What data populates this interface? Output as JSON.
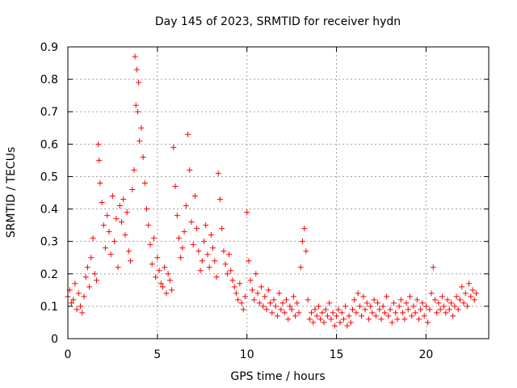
{
  "chart_data": {
    "type": "scatter",
    "title": "Day 145 of 2023, SRMTID for receiver hydn",
    "xlabel": "GPS time / hours",
    "ylabel": "SRMTID / TECUs",
    "xlim": [
      0,
      23.5
    ],
    "ylim": [
      0,
      0.9
    ],
    "xticks": [
      0,
      5,
      10,
      15,
      20
    ],
    "yticks": [
      0,
      0.1,
      0.2,
      0.3,
      0.4,
      0.5,
      0.6,
      0.7,
      0.8,
      0.9
    ],
    "xtick_labels": [
      "0",
      "5",
      "10",
      "15",
      "20"
    ],
    "ytick_labels": [
      "0",
      "0.1",
      "0.2",
      "0.3",
      "0.4",
      "0.5",
      "0.6",
      "0.7",
      "0.8",
      "0.9"
    ],
    "grid": true,
    "marker": "plus",
    "color": "#ff0000",
    "series": [
      {
        "name": "SRMTID",
        "points": [
          [
            0.0,
            0.13
          ],
          [
            0.1,
            0.15
          ],
          [
            0.2,
            0.11
          ],
          [
            0.3,
            0.12
          ],
          [
            0.4,
            0.17
          ],
          [
            0.5,
            0.09
          ],
          [
            0.6,
            0.14
          ],
          [
            0.7,
            0.1
          ],
          [
            0.8,
            0.08
          ],
          [
            0.9,
            0.13
          ],
          [
            1.0,
            0.19
          ],
          [
            1.1,
            0.22
          ],
          [
            1.2,
            0.16
          ],
          [
            1.3,
            0.25
          ],
          [
            1.4,
            0.31
          ],
          [
            1.5,
            0.2
          ],
          [
            1.6,
            0.18
          ],
          [
            1.7,
            0.6
          ],
          [
            1.75,
            0.55
          ],
          [
            1.8,
            0.48
          ],
          [
            1.9,
            0.42
          ],
          [
            2.0,
            0.35
          ],
          [
            2.1,
            0.28
          ],
          [
            2.2,
            0.38
          ],
          [
            2.3,
            0.33
          ],
          [
            2.4,
            0.26
          ],
          [
            2.5,
            0.44
          ],
          [
            2.6,
            0.3
          ],
          [
            2.7,
            0.37
          ],
          [
            2.8,
            0.22
          ],
          [
            2.9,
            0.41
          ],
          [
            3.0,
            0.36
          ],
          [
            3.1,
            0.43
          ],
          [
            3.2,
            0.32
          ],
          [
            3.3,
            0.39
          ],
          [
            3.4,
            0.27
          ],
          [
            3.5,
            0.24
          ],
          [
            3.6,
            0.46
          ],
          [
            3.7,
            0.52
          ],
          [
            3.75,
            0.87
          ],
          [
            3.8,
            0.72
          ],
          [
            3.85,
            0.83
          ],
          [
            3.9,
            0.7
          ],
          [
            3.95,
            0.79
          ],
          [
            4.0,
            0.61
          ],
          [
            4.1,
            0.65
          ],
          [
            4.2,
            0.56
          ],
          [
            4.3,
            0.48
          ],
          [
            4.4,
            0.4
          ],
          [
            4.5,
            0.35
          ],
          [
            4.6,
            0.29
          ],
          [
            4.7,
            0.23
          ],
          [
            4.8,
            0.31
          ],
          [
            4.9,
            0.19
          ],
          [
            5.0,
            0.25
          ],
          [
            5.1,
            0.21
          ],
          [
            5.2,
            0.17
          ],
          [
            5.3,
            0.16
          ],
          [
            5.4,
            0.22
          ],
          [
            5.5,
            0.14
          ],
          [
            5.6,
            0.2
          ],
          [
            5.7,
            0.18
          ],
          [
            5.8,
            0.15
          ],
          [
            5.9,
            0.59
          ],
          [
            6.0,
            0.47
          ],
          [
            6.1,
            0.38
          ],
          [
            6.2,
            0.31
          ],
          [
            6.3,
            0.25
          ],
          [
            6.4,
            0.28
          ],
          [
            6.5,
            0.33
          ],
          [
            6.6,
            0.41
          ],
          [
            6.7,
            0.63
          ],
          [
            6.8,
            0.52
          ],
          [
            6.9,
            0.36
          ],
          [
            7.0,
            0.29
          ],
          [
            7.1,
            0.44
          ],
          [
            7.2,
            0.34
          ],
          [
            7.3,
            0.27
          ],
          [
            7.4,
            0.21
          ],
          [
            7.5,
            0.24
          ],
          [
            7.6,
            0.3
          ],
          [
            7.7,
            0.35
          ],
          [
            7.8,
            0.26
          ],
          [
            7.9,
            0.22
          ],
          [
            8.0,
            0.32
          ],
          [
            8.1,
            0.28
          ],
          [
            8.2,
            0.24
          ],
          [
            8.3,
            0.19
          ],
          [
            8.4,
            0.51
          ],
          [
            8.5,
            0.43
          ],
          [
            8.6,
            0.34
          ],
          [
            8.7,
            0.27
          ],
          [
            8.8,
            0.23
          ],
          [
            8.9,
            0.2
          ],
          [
            9.0,
            0.26
          ],
          [
            9.1,
            0.21
          ],
          [
            9.2,
            0.18
          ],
          [
            9.3,
            0.16
          ],
          [
            9.4,
            0.14
          ],
          [
            9.5,
            0.12
          ],
          [
            9.6,
            0.17
          ],
          [
            9.7,
            0.11
          ],
          [
            9.8,
            0.09
          ],
          [
            9.9,
            0.13
          ],
          [
            10.0,
            0.39
          ],
          [
            10.1,
            0.24
          ],
          [
            10.2,
            0.18
          ],
          [
            10.3,
            0.15
          ],
          [
            10.4,
            0.12
          ],
          [
            10.5,
            0.2
          ],
          [
            10.6,
            0.14
          ],
          [
            10.7,
            0.11
          ],
          [
            10.8,
            0.16
          ],
          [
            10.9,
            0.1
          ],
          [
            11.0,
            0.13
          ],
          [
            11.1,
            0.09
          ],
          [
            11.2,
            0.15
          ],
          [
            11.3,
            0.11
          ],
          [
            11.4,
            0.08
          ],
          [
            11.5,
            0.12
          ],
          [
            11.6,
            0.1
          ],
          [
            11.7,
            0.07
          ],
          [
            11.8,
            0.14
          ],
          [
            11.9,
            0.09
          ],
          [
            12.0,
            0.11
          ],
          [
            12.1,
            0.08
          ],
          [
            12.2,
            0.12
          ],
          [
            12.3,
            0.06
          ],
          [
            12.4,
            0.1
          ],
          [
            12.5,
            0.09
          ],
          [
            12.6,
            0.13
          ],
          [
            12.7,
            0.07
          ],
          [
            12.8,
            0.11
          ],
          [
            12.9,
            0.08
          ],
          [
            13.0,
            0.22
          ],
          [
            13.1,
            0.3
          ],
          [
            13.2,
            0.34
          ],
          [
            13.3,
            0.27
          ],
          [
            13.4,
            0.12
          ],
          [
            13.5,
            0.06
          ],
          [
            13.6,
            0.08
          ],
          [
            13.7,
            0.05
          ],
          [
            13.8,
            0.09
          ],
          [
            13.9,
            0.07
          ],
          [
            14.0,
            0.1
          ],
          [
            14.1,
            0.06
          ],
          [
            14.2,
            0.08
          ],
          [
            14.3,
            0.05
          ],
          [
            14.4,
            0.09
          ],
          [
            14.5,
            0.07
          ],
          [
            14.6,
            0.11
          ],
          [
            14.7,
            0.06
          ],
          [
            14.8,
            0.08
          ],
          [
            14.9,
            0.04
          ],
          [
            15.0,
            0.07
          ],
          [
            15.1,
            0.09
          ],
          [
            15.2,
            0.05
          ],
          [
            15.3,
            0.08
          ],
          [
            15.4,
            0.06
          ],
          [
            15.5,
            0.1
          ],
          [
            15.6,
            0.04
          ],
          [
            15.7,
            0.07
          ],
          [
            15.8,
            0.05
          ],
          [
            15.9,
            0.09
          ],
          [
            16.0,
            0.12
          ],
          [
            16.1,
            0.08
          ],
          [
            16.2,
            0.14
          ],
          [
            16.3,
            0.1
          ],
          [
            16.4,
            0.07
          ],
          [
            16.5,
            0.13
          ],
          [
            16.6,
            0.09
          ],
          [
            16.7,
            0.11
          ],
          [
            16.8,
            0.06
          ],
          [
            16.9,
            0.1
          ],
          [
            17.0,
            0.08
          ],
          [
            17.1,
            0.12
          ],
          [
            17.2,
            0.07
          ],
          [
            17.3,
            0.11
          ],
          [
            17.4,
            0.09
          ],
          [
            17.5,
            0.06
          ],
          [
            17.6,
            0.1
          ],
          [
            17.7,
            0.08
          ],
          [
            17.8,
            0.13
          ],
          [
            17.9,
            0.07
          ],
          [
            18.0,
            0.09
          ],
          [
            18.1,
            0.05
          ],
          [
            18.2,
            0.11
          ],
          [
            18.3,
            0.08
          ],
          [
            18.4,
            0.06
          ],
          [
            18.5,
            0.1
          ],
          [
            18.6,
            0.12
          ],
          [
            18.7,
            0.08
          ],
          [
            18.8,
            0.06
          ],
          [
            18.9,
            0.11
          ],
          [
            19.0,
            0.09
          ],
          [
            19.1,
            0.13
          ],
          [
            19.2,
            0.07
          ],
          [
            19.3,
            0.1
          ],
          [
            19.4,
            0.08
          ],
          [
            19.5,
            0.12
          ],
          [
            19.6,
            0.06
          ],
          [
            19.7,
            0.09
          ],
          [
            19.8,
            0.11
          ],
          [
            19.9,
            0.07
          ],
          [
            20.0,
            0.1
          ],
          [
            20.1,
            0.05
          ],
          [
            20.2,
            0.09
          ],
          [
            20.3,
            0.14
          ],
          [
            20.4,
            0.22
          ],
          [
            20.5,
            0.12
          ],
          [
            20.6,
            0.08
          ],
          [
            20.7,
            0.11
          ],
          [
            20.8,
            0.09
          ],
          [
            20.9,
            0.13
          ],
          [
            21.0,
            0.1
          ],
          [
            21.1,
            0.08
          ],
          [
            21.2,
            0.12
          ],
          [
            21.3,
            0.09
          ],
          [
            21.4,
            0.11
          ],
          [
            21.5,
            0.07
          ],
          [
            21.6,
            0.1
          ],
          [
            21.7,
            0.13
          ],
          [
            21.8,
            0.09
          ],
          [
            21.9,
            0.12
          ],
          [
            22.0,
            0.16
          ],
          [
            22.1,
            0.11
          ],
          [
            22.2,
            0.14
          ],
          [
            22.3,
            0.1
          ],
          [
            22.4,
            0.17
          ],
          [
            22.5,
            0.13
          ],
          [
            22.6,
            0.15
          ],
          [
            22.7,
            0.12
          ],
          [
            22.8,
            0.14
          ]
        ]
      }
    ]
  }
}
